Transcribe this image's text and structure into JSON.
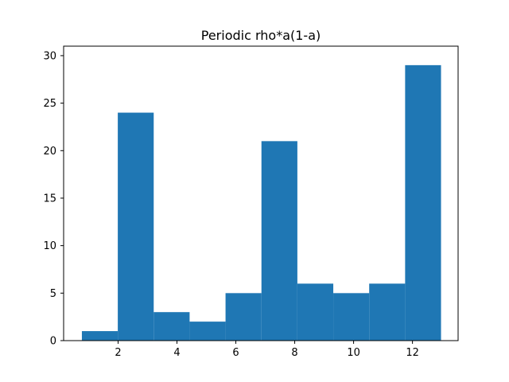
{
  "chart_data": {
    "type": "bar",
    "title": "Periodic rho*a(1-a)",
    "xlabel": "",
    "ylabel": "",
    "xlim": [
      0.15,
      13.55
    ],
    "ylim": [
      0,
      31
    ],
    "bin_edges": [
      0.77,
      1.99,
      3.21,
      4.43,
      5.65,
      6.87,
      8.09,
      9.31,
      10.53,
      11.75,
      12.97
    ],
    "values": [
      1,
      24,
      3,
      2,
      5,
      21,
      6,
      5,
      6,
      29
    ],
    "x_ticks": [
      2,
      4,
      6,
      8,
      10,
      12
    ],
    "y_ticks": [
      0,
      5,
      10,
      15,
      20,
      25,
      30
    ],
    "bar_color": "#1f77b4",
    "grid": false,
    "legend": "none"
  }
}
